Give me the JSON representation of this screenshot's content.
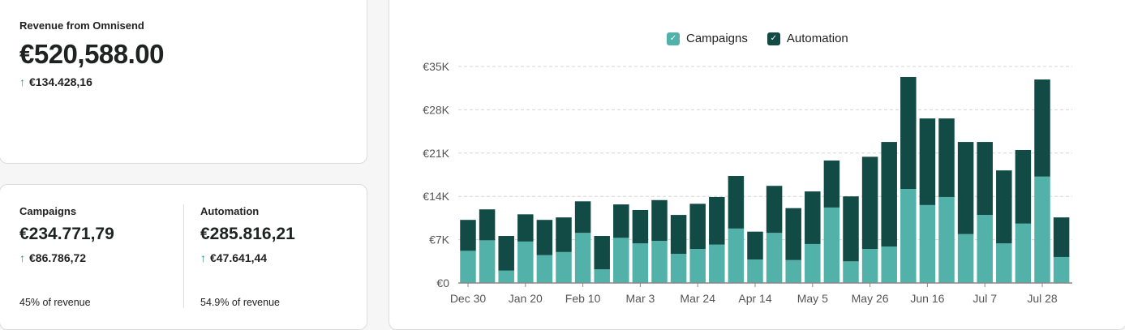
{
  "summary": {
    "title": "Revenue from Omnisend",
    "total": "€520,588.00",
    "delta": "€134.428,16",
    "delta_icon": "arrow-up-icon"
  },
  "breakdown": [
    {
      "label": "Campaigns",
      "value": "€234.771,79",
      "delta": "€86.786,72",
      "share": "45% of revenue"
    },
    {
      "label": "Automation",
      "value": "€285.816,21",
      "delta": "€47.641,44",
      "share": "54.9% of revenue"
    }
  ],
  "chart_data": {
    "type": "bar",
    "stacked": true,
    "legend": [
      "Campaigns",
      "Automation"
    ],
    "legend_position": "top",
    "colors": {
      "Campaigns": "#52b1a9",
      "Automation": "#124b45"
    },
    "ylim": [
      0,
      35000
    ],
    "y_ticks": [
      "€0",
      "€7K",
      "€14K",
      "€21K",
      "€28K",
      "€35K"
    ],
    "x_ticks": [
      "Dec 30",
      "Jan 20",
      "Feb 10",
      "Mar 3",
      "Mar 24",
      "Apr 14",
      "May 5",
      "May 26",
      "Jun 16",
      "Jul 7",
      "Jul 28"
    ],
    "grid": true,
    "series": [
      {
        "name": "Campaigns",
        "values": [
          5200,
          6900,
          2000,
          6700,
          4500,
          5000,
          8100,
          2200,
          7300,
          6400,
          6800,
          4700,
          5500,
          6200,
          8800,
          3800,
          8100,
          3700,
          6300,
          12200,
          3500,
          5500,
          5900,
          15200,
          12600,
          13900,
          7900,
          11000,
          6400,
          9600,
          17200,
          4200
        ]
      },
      {
        "name": "Automation",
        "values": [
          5000,
          5000,
          5600,
          4400,
          5700,
          5600,
          5100,
          5400,
          5400,
          5400,
          6600,
          6300,
          7300,
          7700,
          8500,
          4500,
          7600,
          8400,
          8500,
          7600,
          10500,
          14900,
          16900,
          18100,
          14000,
          12700,
          14900,
          11800,
          11800,
          11900,
          15700,
          6400
        ]
      }
    ]
  }
}
